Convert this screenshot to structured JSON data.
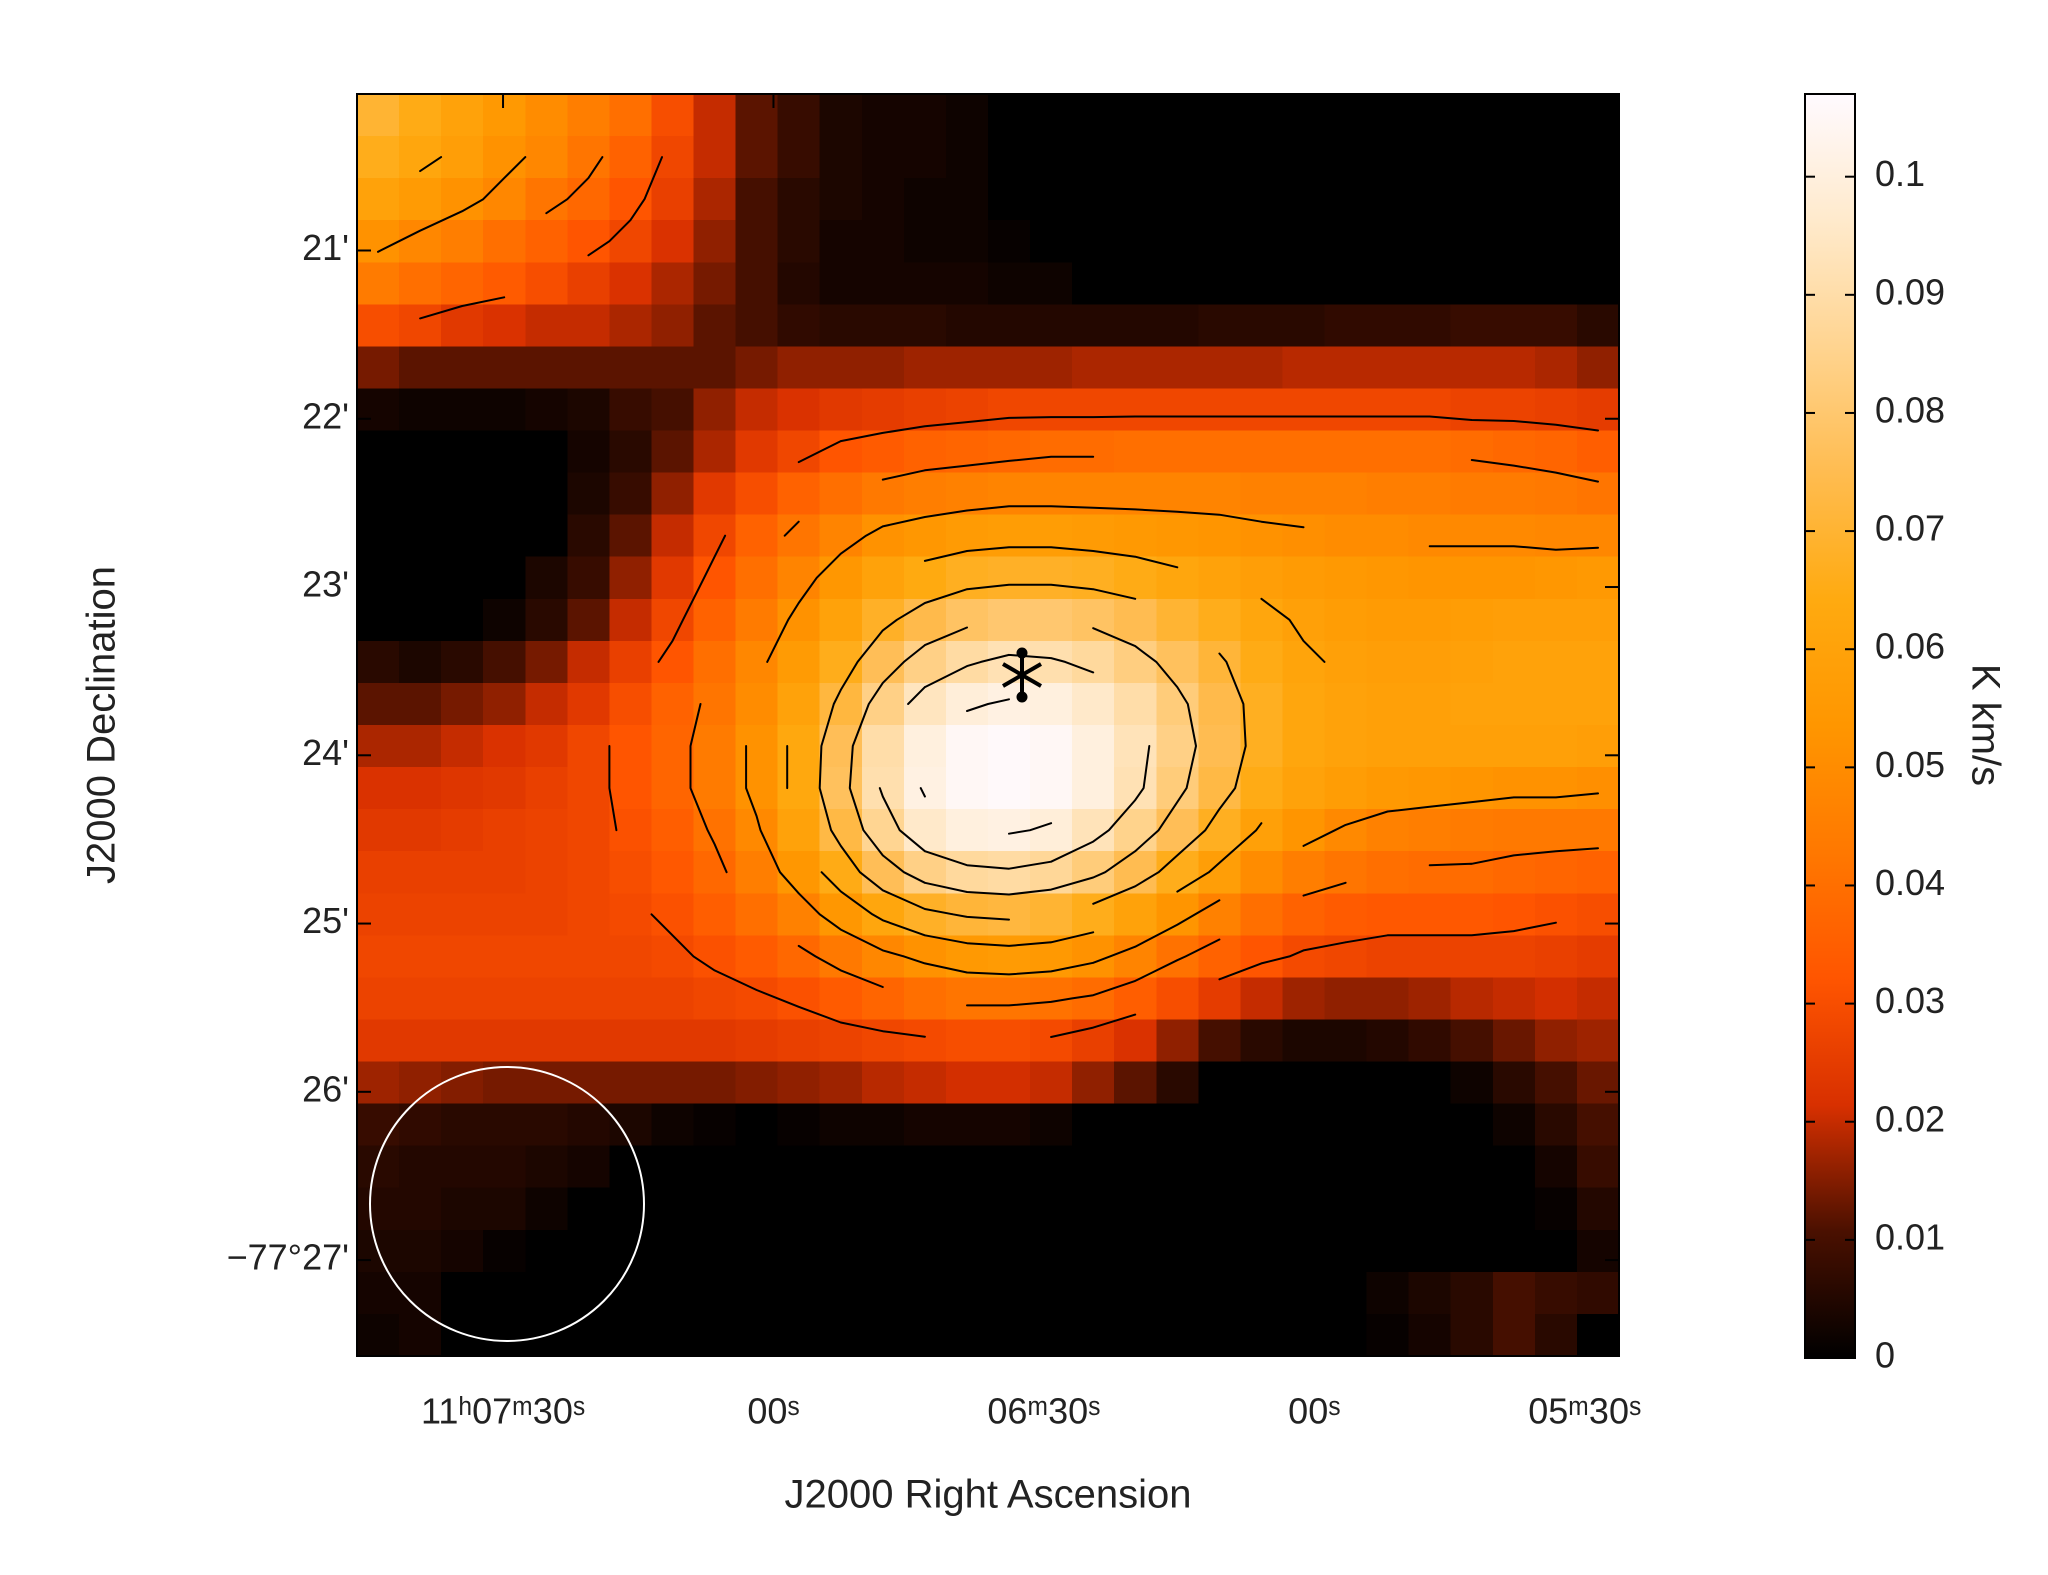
{
  "chart_data": {
    "type": "heatmap",
    "x_label": "J2000 Right Ascension",
    "y_label": "J2000 Declination",
    "colorbar_label": "K km/s",
    "xlim": [
      40066.2,
      39926.2
    ],
    "xticks": [
      {
        "value": 40050,
        "label": "11ʰ07ᵐ30ˢ"
      },
      {
        "value": 40020,
        "label": "00ˢ"
      },
      {
        "value": 39990,
        "label": "06ᵐ30ˢ"
      },
      {
        "value": 39960,
        "label": "00ˢ"
      },
      {
        "value": 39930,
        "label": "05ᵐ30ˢ"
      }
    ],
    "ylim": [
      -4647.57,
      -4640.07
    ],
    "yticks": [
      {
        "value": -4641,
        "label": "21'"
      },
      {
        "value": -4642,
        "label": "22'"
      },
      {
        "value": -4643,
        "label": "23'"
      },
      {
        "value": -4644,
        "label": "24'"
      },
      {
        "value": -4645,
        "label": "25'"
      },
      {
        "value": -4646,
        "label": "26'"
      },
      {
        "value": -4647,
        "label": "−77°27'"
      }
    ],
    "clim": [
      0,
      0.107
    ],
    "cticks": [
      0,
      0.01,
      0.02,
      0.03,
      0.04,
      0.05,
      0.06,
      0.07,
      0.08,
      0.09,
      0.1
    ],
    "colormap": [
      "#000000",
      "#4a1000",
      "#d83000",
      "#ff5500",
      "#ff7800",
      "#ff9600",
      "#ffaa10",
      "#ffbc50",
      "#ffd490",
      "#ffeacc",
      "#fffaff"
    ],
    "contour_levels": [
      0.03,
      0.04,
      0.05,
      0.06,
      0.07,
      0.08,
      0.09,
      0.1
    ],
    "contour_color": "#000000",
    "z": [
      [
        0.07,
        0.065,
        0.06,
        0.055,
        0.05,
        0.045,
        0.04,
        0.03,
        0.02,
        0.012,
        0.008,
        0.004,
        0.003,
        0.003,
        0.002,
        0,
        0,
        0,
        0,
        0,
        0,
        0,
        0,
        0,
        0,
        0,
        0,
        0,
        0,
        0
      ],
      [
        0.066,
        0.062,
        0.058,
        0.052,
        0.048,
        0.042,
        0.036,
        0.028,
        0.02,
        0.012,
        0.008,
        0.004,
        0.003,
        0.003,
        0.002,
        0,
        0,
        0,
        0,
        0,
        0,
        0,
        0,
        0,
        0,
        0,
        0,
        0,
        0,
        0
      ],
      [
        0.06,
        0.056,
        0.052,
        0.048,
        0.042,
        0.038,
        0.032,
        0.026,
        0.018,
        0.01,
        0.006,
        0.004,
        0.003,
        0.002,
        0.002,
        0,
        0,
        0,
        0,
        0,
        0,
        0,
        0,
        0,
        0,
        0,
        0,
        0,
        0,
        0
      ],
      [
        0.052,
        0.048,
        0.045,
        0.04,
        0.036,
        0.032,
        0.028,
        0.022,
        0.016,
        0.01,
        0.006,
        0.003,
        0.003,
        0.002,
        0.002,
        0.001,
        0,
        0,
        0,
        0,
        0,
        0,
        0,
        0,
        0,
        0,
        0,
        0,
        0,
        0
      ],
      [
        0.044,
        0.04,
        0.037,
        0.034,
        0.03,
        0.026,
        0.022,
        0.018,
        0.014,
        0.01,
        0.005,
        0.003,
        0.003,
        0.003,
        0.003,
        0.002,
        0.002,
        0,
        0,
        0,
        0,
        0,
        0,
        0,
        0,
        0,
        0,
        0,
        0,
        0
      ],
      [
        0.03,
        0.028,
        0.024,
        0.022,
        0.02,
        0.02,
        0.018,
        0.016,
        0.012,
        0.01,
        0.007,
        0.006,
        0.006,
        0.006,
        0.005,
        0.005,
        0.005,
        0.005,
        0.005,
        0.005,
        0.006,
        0.006,
        0.006,
        0.007,
        0.007,
        0.007,
        0.008,
        0.008,
        0.008,
        0.006
      ],
      [
        0.014,
        0.012,
        0.012,
        0.012,
        0.012,
        0.012,
        0.012,
        0.012,
        0.012,
        0.014,
        0.016,
        0.016,
        0.016,
        0.017,
        0.017,
        0.017,
        0.017,
        0.018,
        0.018,
        0.018,
        0.018,
        0.018,
        0.019,
        0.019,
        0.019,
        0.019,
        0.019,
        0.019,
        0.018,
        0.016
      ],
      [
        0.003,
        0.002,
        0.002,
        0.002,
        0.003,
        0.004,
        0.008,
        0.01,
        0.016,
        0.02,
        0.022,
        0.024,
        0.025,
        0.026,
        0.027,
        0.028,
        0.028,
        0.028,
        0.028,
        0.028,
        0.028,
        0.028,
        0.028,
        0.028,
        0.028,
        0.028,
        0.027,
        0.027,
        0.026,
        0.025
      ],
      [
        0,
        0,
        0,
        0,
        0,
        0.003,
        0.006,
        0.012,
        0.018,
        0.024,
        0.028,
        0.032,
        0.034,
        0.036,
        0.037,
        0.038,
        0.039,
        0.039,
        0.04,
        0.04,
        0.04,
        0.04,
        0.04,
        0.04,
        0.04,
        0.04,
        0.039,
        0.038,
        0.037,
        0.035
      ],
      [
        0,
        0,
        0,
        0,
        0,
        0.004,
        0.008,
        0.016,
        0.024,
        0.03,
        0.036,
        0.04,
        0.043,
        0.045,
        0.046,
        0.047,
        0.047,
        0.047,
        0.047,
        0.047,
        0.047,
        0.046,
        0.046,
        0.046,
        0.045,
        0.045,
        0.044,
        0.044,
        0.043,
        0.042
      ],
      [
        0,
        0,
        0,
        0,
        0,
        0.006,
        0.012,
        0.02,
        0.028,
        0.036,
        0.042,
        0.047,
        0.052,
        0.054,
        0.056,
        0.057,
        0.057,
        0.056,
        0.055,
        0.054,
        0.053,
        0.052,
        0.051,
        0.05,
        0.05,
        0.049,
        0.049,
        0.049,
        0.048,
        0.048
      ],
      [
        0,
        0,
        0,
        0,
        0.004,
        0.008,
        0.016,
        0.024,
        0.032,
        0.04,
        0.047,
        0.054,
        0.06,
        0.064,
        0.067,
        0.068,
        0.068,
        0.067,
        0.065,
        0.062,
        0.06,
        0.058,
        0.056,
        0.055,
        0.054,
        0.053,
        0.053,
        0.053,
        0.054,
        0.055
      ],
      [
        0,
        0,
        0,
        0.002,
        0.006,
        0.012,
        0.02,
        0.028,
        0.036,
        0.044,
        0.052,
        0.06,
        0.068,
        0.074,
        0.078,
        0.08,
        0.08,
        0.078,
        0.075,
        0.07,
        0.066,
        0.062,
        0.059,
        0.057,
        0.056,
        0.056,
        0.057,
        0.058,
        0.058,
        0.058
      ],
      [
        0.006,
        0.004,
        0.006,
        0.01,
        0.014,
        0.02,
        0.026,
        0.032,
        0.04,
        0.048,
        0.056,
        0.066,
        0.076,
        0.084,
        0.089,
        0.092,
        0.091,
        0.088,
        0.083,
        0.077,
        0.071,
        0.065,
        0.061,
        0.059,
        0.058,
        0.058,
        0.059,
        0.06,
        0.06,
        0.06
      ],
      [
        0.012,
        0.012,
        0.014,
        0.016,
        0.02,
        0.024,
        0.03,
        0.036,
        0.042,
        0.05,
        0.06,
        0.072,
        0.084,
        0.094,
        0.099,
        0.101,
        0.1,
        0.096,
        0.09,
        0.082,
        0.074,
        0.067,
        0.062,
        0.06,
        0.059,
        0.059,
        0.06,
        0.06,
        0.06,
        0.06
      ],
      [
        0.018,
        0.018,
        0.02,
        0.022,
        0.024,
        0.028,
        0.032,
        0.037,
        0.044,
        0.052,
        0.063,
        0.076,
        0.09,
        0.1,
        0.105,
        0.106,
        0.105,
        0.1,
        0.093,
        0.084,
        0.075,
        0.067,
        0.062,
        0.06,
        0.059,
        0.059,
        0.059,
        0.059,
        0.059,
        0.058
      ],
      [
        0.022,
        0.022,
        0.023,
        0.024,
        0.026,
        0.028,
        0.032,
        0.037,
        0.044,
        0.052,
        0.063,
        0.077,
        0.091,
        0.101,
        0.105,
        0.106,
        0.105,
        0.1,
        0.092,
        0.082,
        0.073,
        0.065,
        0.06,
        0.057,
        0.055,
        0.054,
        0.053,
        0.052,
        0.052,
        0.051
      ],
      [
        0.024,
        0.024,
        0.025,
        0.026,
        0.027,
        0.028,
        0.031,
        0.035,
        0.041,
        0.049,
        0.06,
        0.073,
        0.086,
        0.096,
        0.1,
        0.101,
        0.099,
        0.093,
        0.085,
        0.076,
        0.067,
        0.059,
        0.053,
        0.049,
        0.046,
        0.045,
        0.044,
        0.043,
        0.043,
        0.043
      ],
      [
        0.026,
        0.026,
        0.026,
        0.026,
        0.027,
        0.028,
        0.03,
        0.033,
        0.038,
        0.045,
        0.054,
        0.065,
        0.076,
        0.084,
        0.088,
        0.089,
        0.087,
        0.082,
        0.075,
        0.066,
        0.058,
        0.05,
        0.045,
        0.042,
        0.04,
        0.039,
        0.039,
        0.038,
        0.037,
        0.036
      ],
      [
        0.027,
        0.027,
        0.027,
        0.027,
        0.027,
        0.028,
        0.029,
        0.031,
        0.035,
        0.04,
        0.046,
        0.054,
        0.062,
        0.068,
        0.071,
        0.072,
        0.07,
        0.066,
        0.06,
        0.053,
        0.046,
        0.04,
        0.036,
        0.034,
        0.033,
        0.033,
        0.033,
        0.032,
        0.031,
        0.03
      ],
      [
        0.028,
        0.028,
        0.028,
        0.028,
        0.028,
        0.028,
        0.028,
        0.029,
        0.031,
        0.034,
        0.038,
        0.043,
        0.048,
        0.052,
        0.055,
        0.056,
        0.055,
        0.052,
        0.047,
        0.041,
        0.036,
        0.032,
        0.029,
        0.028,
        0.027,
        0.027,
        0.027,
        0.027,
        0.026,
        0.025
      ],
      [
        0.027,
        0.027,
        0.027,
        0.027,
        0.027,
        0.027,
        0.027,
        0.027,
        0.028,
        0.029,
        0.031,
        0.034,
        0.037,
        0.04,
        0.042,
        0.042,
        0.041,
        0.039,
        0.035,
        0.03,
        0.025,
        0.02,
        0.017,
        0.016,
        0.016,
        0.017,
        0.019,
        0.02,
        0.021,
        0.02
      ],
      [
        0.024,
        0.024,
        0.024,
        0.024,
        0.024,
        0.024,
        0.024,
        0.024,
        0.024,
        0.025,
        0.026,
        0.027,
        0.028,
        0.029,
        0.03,
        0.03,
        0.029,
        0.026,
        0.022,
        0.016,
        0.01,
        0.006,
        0.004,
        0.004,
        0.005,
        0.007,
        0.01,
        0.013,
        0.016,
        0.017
      ],
      [
        0.017,
        0.016,
        0.015,
        0.014,
        0.014,
        0.014,
        0.014,
        0.014,
        0.014,
        0.015,
        0.016,
        0.017,
        0.019,
        0.02,
        0.021,
        0.021,
        0.02,
        0.016,
        0.012,
        0.006,
        0,
        0,
        0,
        0,
        0,
        0,
        0.002,
        0.006,
        0.01,
        0.013
      ],
      [
        0.008,
        0.007,
        0.006,
        0.006,
        0.006,
        0.005,
        0.004,
        0.002,
        0.001,
        0,
        0.001,
        0.002,
        0.002,
        0.003,
        0.003,
        0.003,
        0.002,
        0,
        0,
        0,
        0,
        0,
        0,
        0,
        0,
        0,
        0,
        0.002,
        0.006,
        0.01
      ],
      [
        0.006,
        0.005,
        0.005,
        0.005,
        0.004,
        0.003,
        0,
        0,
        0,
        0,
        0,
        0,
        0,
        0,
        0,
        0,
        0,
        0,
        0,
        0,
        0,
        0,
        0,
        0,
        0,
        0,
        0,
        0,
        0.003,
        0.008
      ],
      [
        0.005,
        0.005,
        0.004,
        0.004,
        0.002,
        0,
        0,
        0,
        0,
        0,
        0,
        0,
        0,
        0,
        0,
        0,
        0,
        0,
        0,
        0,
        0,
        0,
        0,
        0,
        0,
        0,
        0,
        0,
        0.001,
        0.005
      ],
      [
        0.004,
        0.004,
        0.003,
        0.001,
        0,
        0,
        0,
        0,
        0,
        0,
        0,
        0,
        0,
        0,
        0,
        0,
        0,
        0,
        0,
        0,
        0,
        0,
        0,
        0,
        0,
        0,
        0,
        0,
        0,
        0.003
      ],
      [
        0.003,
        0.003,
        0,
        0,
        0,
        0,
        0,
        0,
        0,
        0,
        0,
        0,
        0,
        0,
        0,
        0,
        0,
        0,
        0,
        0,
        0,
        0,
        0,
        0,
        0.002,
        0.004,
        0.006,
        0.01,
        0.008,
        0.007
      ],
      [
        0.002,
        0.003,
        0,
        0,
        0,
        0,
        0,
        0,
        0,
        0,
        0,
        0,
        0,
        0,
        0,
        0,
        0,
        0,
        0,
        0,
        0,
        0,
        0,
        0,
        0.001,
        0.003,
        0.006,
        0.01,
        0.006,
        0
      ]
    ]
  }
}
